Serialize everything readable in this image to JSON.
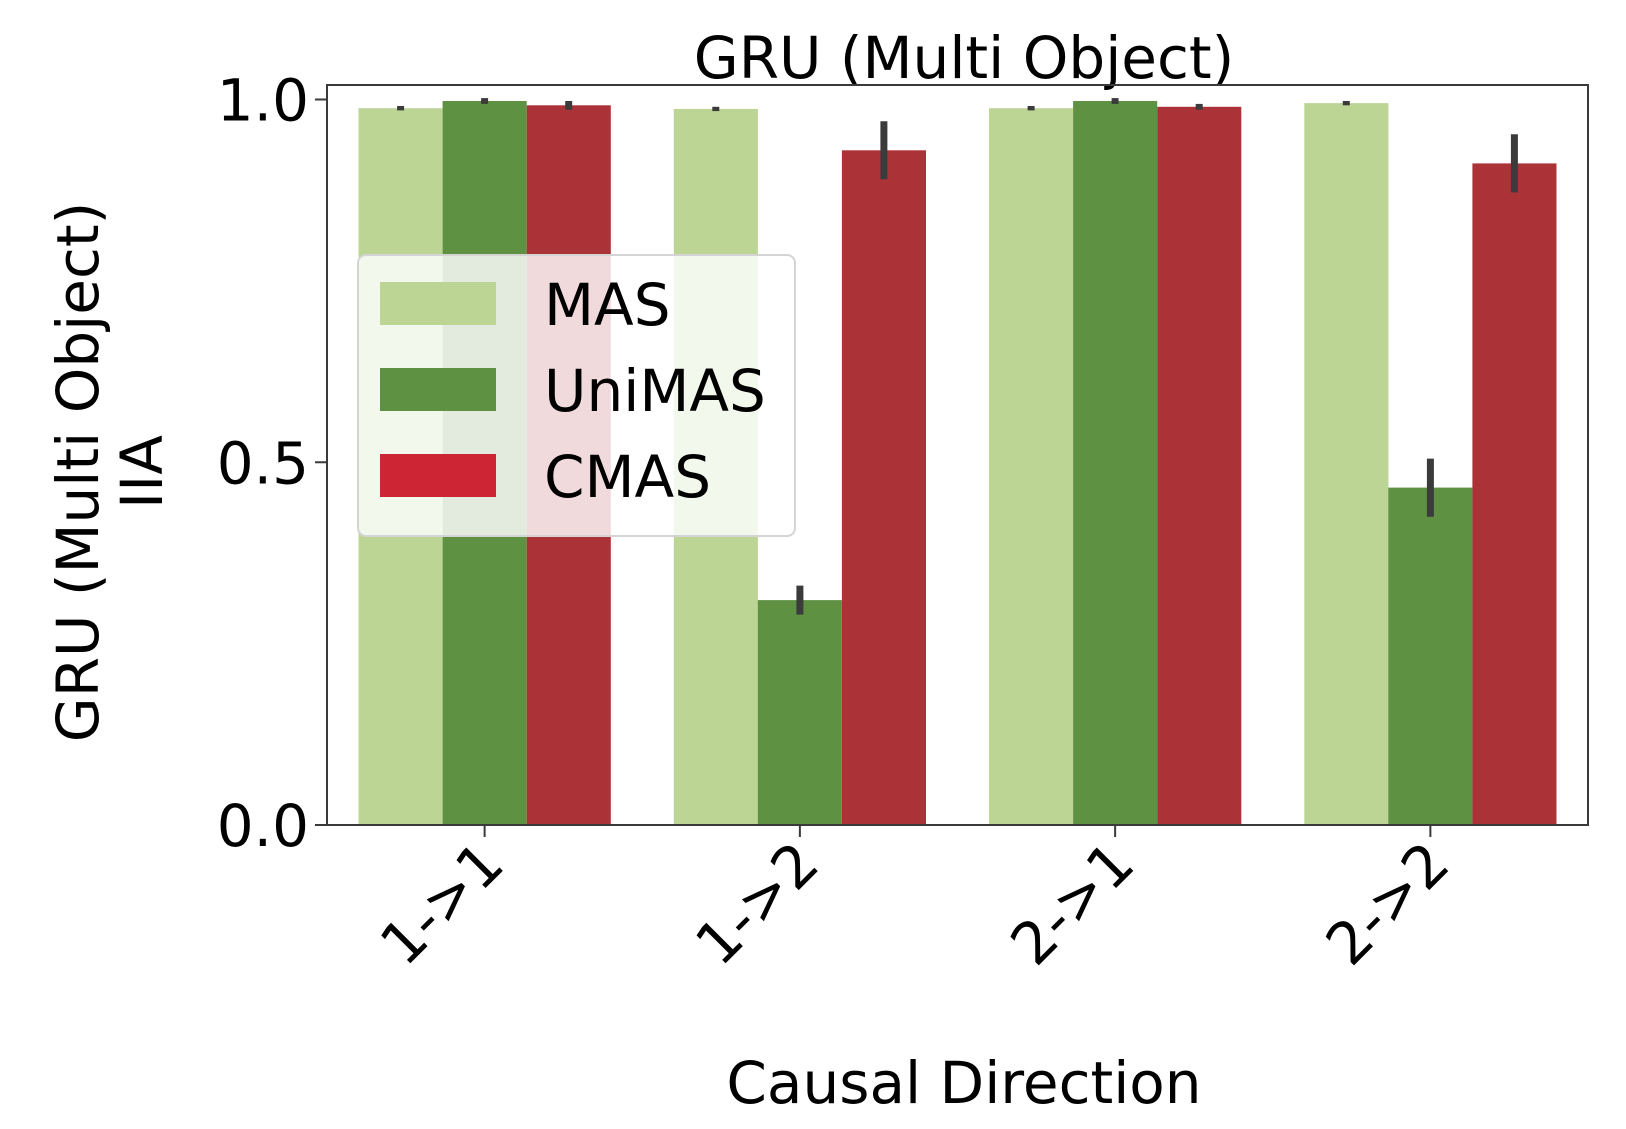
{
  "chart_data": {
    "type": "bar",
    "title": "GRU (Multi Object)",
    "xlabel": "Causal Direction",
    "ylabel_lines": [
      "GRU (Multi Object)",
      "IIA"
    ],
    "categories": [
      "1->1",
      "1->2",
      "2->1",
      "2->2"
    ],
    "ylim": [
      0,
      1.02
    ],
    "yticks": [
      0.0,
      0.5,
      1.0
    ],
    "ytick_labels": [
      "0.0",
      "0.5",
      "1.0"
    ],
    "grid": false,
    "legend_position": "upper-left",
    "series": [
      {
        "name": "MAS",
        "color": "#bcd595",
        "values": [
          0.988,
          0.987,
          0.988,
          0.995
        ],
        "err": [
          0.003,
          0.003,
          0.003,
          0.003
        ]
      },
      {
        "name": "UniMAS",
        "color": "#5f9142",
        "values": [
          0.998,
          0.31,
          0.998,
          0.465
        ],
        "err": [
          0.004,
          0.02,
          0.004,
          0.04
        ]
      },
      {
        "name": "CMAS",
        "color": "#ab3237",
        "values": [
          0.992,
          0.93,
          0.99,
          0.912
        ],
        "err": [
          0.006,
          0.04,
          0.004,
          0.04
        ]
      }
    ],
    "legend_swatch_colors": [
      "#bcd595",
      "#5f9142",
      "#cd2533"
    ],
    "errorbar_color": "#3b3b3b"
  }
}
